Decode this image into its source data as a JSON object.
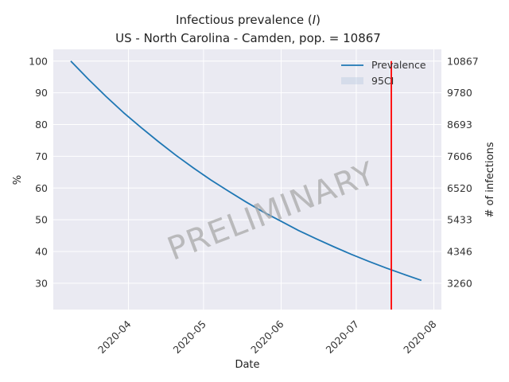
{
  "chart_data": {
    "type": "line",
    "title_line1": "Infectious prevalence (",
    "title_symbol": "I",
    "title_line1_end": ")",
    "title_line2": "US - North Carolina - Camden, pop. = 10867",
    "xlabel": "Date",
    "ylabel_left": "%",
    "ylabel_right": "# of infections",
    "ylim": [
      21.7,
      103.7
    ],
    "xlim": [
      "2020-03-02",
      "2020-08-04"
    ],
    "x_ticks": [
      {
        "date": "2020-04-01",
        "label": "2020-04"
      },
      {
        "date": "2020-05-01",
        "label": "2020-05"
      },
      {
        "date": "2020-06-01",
        "label": "2020-06"
      },
      {
        "date": "2020-07-01",
        "label": "2020-07"
      },
      {
        "date": "2020-08-01",
        "label": "2020-08"
      }
    ],
    "y_ticks_left": [
      {
        "value": 30,
        "label": "30"
      },
      {
        "value": 40,
        "label": "40"
      },
      {
        "value": 50,
        "label": "50"
      },
      {
        "value": 60,
        "label": "60"
      },
      {
        "value": 70,
        "label": "70"
      },
      {
        "value": 80,
        "label": "80"
      },
      {
        "value": 90,
        "label": "90"
      },
      {
        "value": 100,
        "label": "100"
      }
    ],
    "y_ticks_right": [
      {
        "value": 30,
        "label": "3260"
      },
      {
        "value": 40,
        "label": "4346"
      },
      {
        "value": 50,
        "label": "5433"
      },
      {
        "value": 60,
        "label": "6520"
      },
      {
        "value": 70,
        "label": "7606"
      },
      {
        "value": 80,
        "label": "8693"
      },
      {
        "value": 90,
        "label": "9780"
      },
      {
        "value": 100,
        "label": "10867"
      }
    ],
    "series": [
      {
        "name": "Prevalence",
        "color": "#1f77b4",
        "x": [
          "2020-03-09",
          "2020-03-16",
          "2020-03-23",
          "2020-03-30",
          "2020-04-06",
          "2020-04-13",
          "2020-04-20",
          "2020-04-27",
          "2020-05-04",
          "2020-05-11",
          "2020-05-18",
          "2020-05-25",
          "2020-06-01",
          "2020-06-08",
          "2020-06-15",
          "2020-06-22",
          "2020-06-29",
          "2020-07-06",
          "2020-07-13",
          "2020-07-20",
          "2020-07-27"
        ],
        "y": [
          100,
          94.3,
          88.9,
          83.8,
          79.1,
          74.6,
          70.3,
          66.3,
          62.5,
          59.0,
          55.6,
          52.4,
          49.5,
          46.6,
          44.0,
          41.5,
          39.1,
          36.9,
          34.8,
          32.8,
          30.9
        ]
      }
    ],
    "band": {
      "name": "95CI",
      "color": "#b0c4de"
    },
    "vline": {
      "x": "2020-07-15",
      "color": "#ff0000",
      "y_top": 100
    },
    "legend_position": "top-right",
    "watermark": "PRELIMINARY",
    "grid": true,
    "background": "#eaeaf2"
  }
}
